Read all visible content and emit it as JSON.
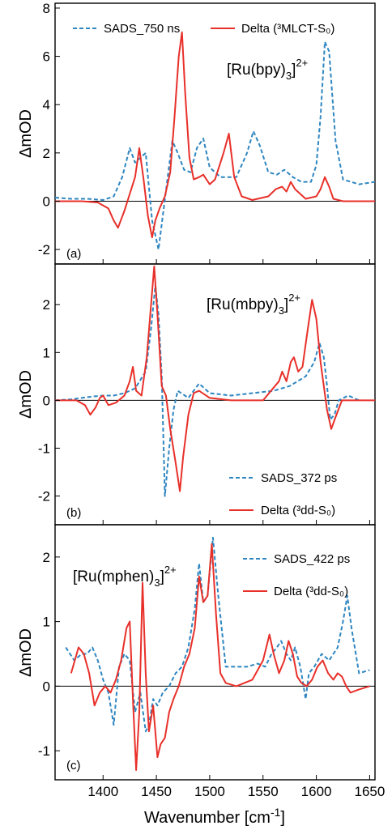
{
  "figure": {
    "x_axis_label": "Wavenumber [cm",
    "x_axis_label_exp": "-1",
    "x_axis_label_end": "]",
    "x_ticks": [
      "1400",
      "1450",
      "1500",
      "1550",
      "1600",
      "1650"
    ]
  },
  "chart_data": [
    {
      "type": "line",
      "panel_label": "(a)",
      "compound": {
        "base": "[Ru(bpy)",
        "sub": "3",
        "close": "]",
        "sup": "2+"
      },
      "ylabel": "ΔmOD",
      "xlim": [
        1355,
        1655
      ],
      "ylim": [
        -2.6,
        8.2
      ],
      "yticks": [
        -2,
        0,
        2,
        4,
        6,
        8
      ],
      "yticklabels": [
        "-2",
        "0",
        "2",
        "4",
        "6",
        "8"
      ],
      "legend_position": "top",
      "series": [
        {
          "name": "SADS_750 ns",
          "style": "dashed",
          "color": "#2e86c1",
          "x": [
            1355,
            1370,
            1385,
            1400,
            1410,
            1418,
            1425,
            1430,
            1435,
            1440,
            1446,
            1452,
            1456,
            1460,
            1465,
            1470,
            1476,
            1482,
            1488,
            1494,
            1500,
            1510,
            1525,
            1535,
            1541,
            1547,
            1555,
            1563,
            1570,
            1578,
            1586,
            1595,
            1600,
            1604,
            1608,
            1612,
            1618,
            1625,
            1640,
            1655
          ],
          "y": [
            0.15,
            0.1,
            0.1,
            0.05,
            0.2,
            1.0,
            2.2,
            1.6,
            1.8,
            2.0,
            -0.8,
            -2.0,
            -0.6,
            0.8,
            2.5,
            2.0,
            1.3,
            1.2,
            2.2,
            2.6,
            1.4,
            1.0,
            1.0,
            2.0,
            2.9,
            2.3,
            1.2,
            1.1,
            1.3,
            1.0,
            0.8,
            0.8,
            1.5,
            3.5,
            6.6,
            6.2,
            2.5,
            0.9,
            0.7,
            0.8
          ]
        },
        {
          "name": "Delta (³MLCT-S₀)",
          "style": "solid",
          "color": "#e8302a",
          "x": [
            1355,
            1380,
            1395,
            1405,
            1410,
            1414,
            1420,
            1425,
            1430,
            1434,
            1438,
            1442,
            1446,
            1449,
            1453,
            1458,
            1463,
            1467,
            1471,
            1474,
            1477,
            1481,
            1485,
            1490,
            1494,
            1500,
            1505,
            1513,
            1518,
            1523,
            1530,
            1540,
            1555,
            1562,
            1568,
            1572,
            1576,
            1580,
            1590,
            1600,
            1604,
            1608,
            1612,
            1616,
            1625,
            1640,
            1655
          ],
          "y": [
            0,
            0,
            -0.05,
            -0.3,
            -0.8,
            -1.1,
            -0.4,
            0.3,
            1.0,
            2.2,
            0.9,
            -0.6,
            -1.5,
            -0.8,
            -0.3,
            0.2,
            1.2,
            3.5,
            6.0,
            7.0,
            4.5,
            1.8,
            0.9,
            1.0,
            1.1,
            0.7,
            0.9,
            2.0,
            2.8,
            1.0,
            0.2,
            0.05,
            0.2,
            0.5,
            0.6,
            0.4,
            0.8,
            0.5,
            0.1,
            0.2,
            0.5,
            1.0,
            0.6,
            0.1,
            0,
            0,
            0
          ]
        }
      ]
    },
    {
      "type": "line",
      "panel_label": "(b)",
      "compound": {
        "base": "[Ru(mbpy)",
        "sub": "3",
        "close": "]",
        "sup": "2+"
      },
      "ylabel": "ΔmOD",
      "xlim": [
        1355,
        1655
      ],
      "ylim": [
        -2.6,
        2.85
      ],
      "yticks": [
        -2,
        -1,
        0,
        1,
        2
      ],
      "yticklabels": [
        "-2",
        "-1",
        "0",
        "1",
        "2"
      ],
      "legend_position": "bottom-right",
      "series": [
        {
          "name": "SADS_372 ps",
          "style": "dashed",
          "color": "#2e86c1",
          "x": [
            1355,
            1370,
            1380,
            1390,
            1400,
            1410,
            1420,
            1430,
            1440,
            1445,
            1449,
            1452,
            1455,
            1458,
            1462,
            1466,
            1470,
            1480,
            1490,
            1500,
            1520,
            1540,
            1560,
            1575,
            1590,
            1598,
            1603,
            1607,
            1610,
            1613,
            1617,
            1621,
            1630,
            1640
          ],
          "y": [
            0,
            0.02,
            0.05,
            0.08,
            0.1,
            0.1,
            0.15,
            0.25,
            0.6,
            1.5,
            2.4,
            1.8,
            0.5,
            -2.0,
            -1.0,
            -0.2,
            0.2,
            0.05,
            0.35,
            0.15,
            0.1,
            0.15,
            0.2,
            0.3,
            0.5,
            0.8,
            1.2,
            0.9,
            0.3,
            -0.4,
            -0.3,
            0,
            0.1,
            0
          ]
        },
        {
          "name": "Delta (³dd-S₀)",
          "style": "solid",
          "color": "#e8302a",
          "x": [
            1355,
            1375,
            1383,
            1388,
            1393,
            1397,
            1400,
            1405,
            1412,
            1420,
            1425,
            1428,
            1431,
            1436,
            1441,
            1445,
            1448,
            1451,
            1455,
            1459,
            1463,
            1468,
            1472,
            1475,
            1480,
            1485,
            1490,
            1500,
            1520,
            1550,
            1565,
            1568,
            1572,
            1576,
            1579,
            1583,
            1587,
            1592,
            1596,
            1600,
            1604,
            1607,
            1610,
            1614,
            1618,
            1624,
            1632,
            1655
          ],
          "y": [
            0,
            0,
            -0.1,
            -0.3,
            -0.15,
            0.05,
            0.1,
            -0.1,
            -0.05,
            0.1,
            0.4,
            0.7,
            0.2,
            0.1,
            0.9,
            2.0,
            2.8,
            1.8,
            0.3,
            0.1,
            -0.6,
            -1.3,
            -1.9,
            -1.2,
            -0.3,
            0.15,
            0.2,
            0.05,
            0,
            0,
            0.4,
            0.6,
            0.4,
            0.8,
            0.9,
            0.6,
            0.7,
            1.5,
            2.1,
            1.7,
            0.8,
            0.3,
            -0.2,
            -0.6,
            -0.35,
            0,
            0,
            0
          ]
        }
      ]
    },
    {
      "type": "line",
      "panel_label": "(c)",
      "compound": {
        "base": "[Ru(mphen)",
        "sub": "3",
        "close": "]",
        "sup": "2+"
      },
      "ylabel": "ΔmOD",
      "xlim": [
        1355,
        1655
      ],
      "ylim": [
        -1.45,
        2.5
      ],
      "yticks": [
        -1,
        0,
        1,
        2
      ],
      "yticklabels": [
        "-1",
        "0",
        "1",
        "2"
      ],
      "legend_position": "top-right",
      "series": [
        {
          "name": "SADS_422 ps",
          "style": "dashed",
          "color": "#2e86c1",
          "x": [
            1365,
            1373,
            1380,
            1385,
            1390,
            1395,
            1400,
            1405,
            1410,
            1415,
            1420,
            1425,
            1430,
            1435,
            1440,
            1443,
            1447,
            1451,
            1456,
            1462,
            1468,
            1474,
            1480,
            1486,
            1490,
            1494,
            1498,
            1503,
            1508,
            1515,
            1525,
            1535,
            1545,
            1552,
            1558,
            1563,
            1567,
            1572,
            1576,
            1580,
            1585,
            1590,
            1593,
            1598,
            1605,
            1612,
            1620,
            1625,
            1629,
            1633,
            1640,
            1650
          ],
          "y": [
            0.6,
            0.4,
            0.5,
            0.5,
            0.6,
            0.4,
            0.1,
            -0.1,
            -0.6,
            0.3,
            0.5,
            0.4,
            -0.4,
            -0.1,
            -0.7,
            -0.6,
            -0.2,
            -0.3,
            -0.1,
            0.0,
            0.2,
            0.3,
            0.6,
            1.2,
            1.9,
            1.3,
            1.4,
            2.3,
            1.4,
            0.3,
            0.3,
            0.3,
            0.35,
            0.3,
            0.5,
            0.6,
            0.7,
            0.5,
            0.4,
            0.6,
            0.3,
            -0.2,
            0.2,
            0.3,
            0.5,
            0.4,
            0.6,
            1.0,
            1.4,
            0.9,
            0.2,
            0.25
          ]
        },
        {
          "name": "Delta (³dd-S₀)",
          "style": "solid",
          "color": "#e8302a",
          "x": [
            1370,
            1377,
            1382,
            1387,
            1392,
            1397,
            1402,
            1407,
            1412,
            1417,
            1422,
            1425,
            1428,
            1431,
            1434,
            1437,
            1440,
            1443,
            1447,
            1451,
            1454,
            1458,
            1462,
            1466,
            1471,
            1476,
            1481,
            1486,
            1490,
            1494,
            1498,
            1502,
            1506,
            1510,
            1515,
            1525,
            1540,
            1550,
            1556,
            1560,
            1565,
            1570,
            1574,
            1578,
            1582,
            1586,
            1591,
            1596,
            1601,
            1606,
            1611,
            1616,
            1620,
            1624,
            1628,
            1632,
            1640,
            1650
          ],
          "y": [
            0.2,
            0.6,
            0.5,
            0.2,
            -0.3,
            -0.1,
            0.0,
            -0.1,
            0.1,
            0.4,
            0.9,
            1.0,
            -0.2,
            -1.3,
            -0.4,
            1.6,
            0.2,
            -0.7,
            -0.3,
            -1.1,
            -0.9,
            -0.8,
            -0.4,
            -0.2,
            0.0,
            0.3,
            0.5,
            0.9,
            1.7,
            1.3,
            1.4,
            2.2,
            1.1,
            0.2,
            0.05,
            0.0,
            0.1,
            0.4,
            0.8,
            0.5,
            0.2,
            0.4,
            0.7,
            0.5,
            0.15,
            0.05,
            0.0,
            0.1,
            0.3,
            0.4,
            0.2,
            0.1,
            0.2,
            0.15,
            0.0,
            -0.1,
            -0.05,
            0.0
          ]
        }
      ]
    }
  ]
}
